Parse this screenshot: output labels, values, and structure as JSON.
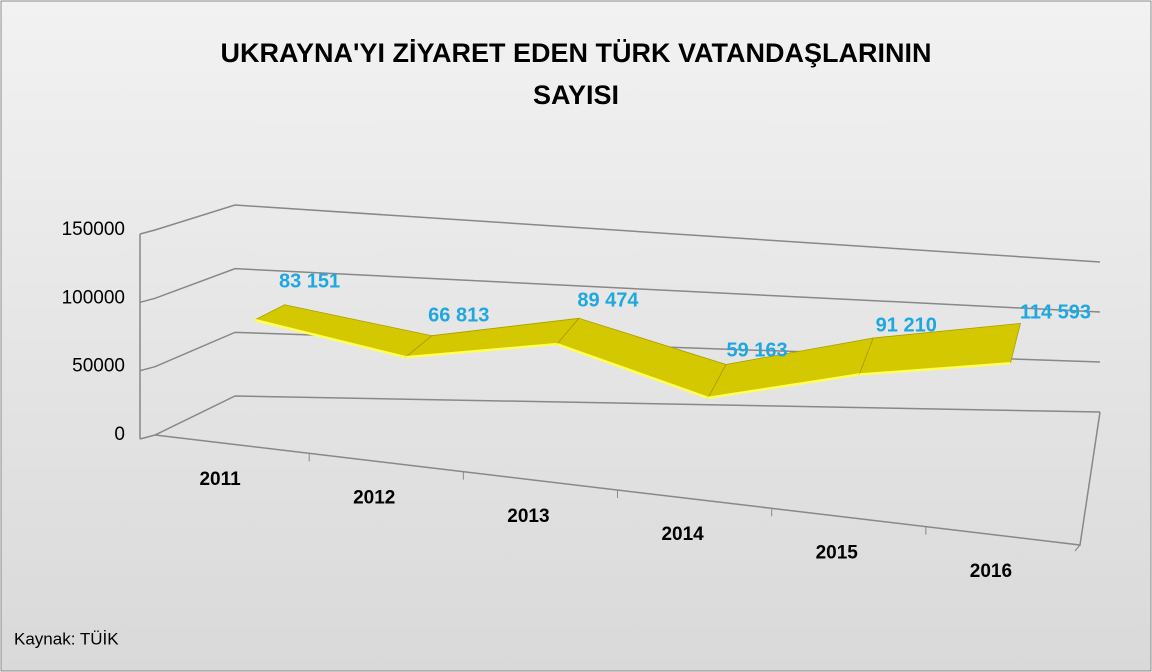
{
  "chart_data": {
    "type": "line3d",
    "title": "UKRAYNA'YI ZİYARET EDEN TÜRK VATANDAŞLARININ SAYISI",
    "categories": [
      "2011",
      "2012",
      "2013",
      "2014",
      "2015",
      "2016"
    ],
    "values": [
      83151,
      66813,
      89474,
      59163,
      91210,
      114593
    ],
    "value_labels": [
      "83 151",
      "66 813",
      "89 474",
      "59 163",
      "91 210",
      "114 593"
    ],
    "color": "#d4c800",
    "ylim": [
      0,
      150000
    ],
    "yticks": [
      0,
      50000,
      100000,
      150000
    ],
    "grid": true,
    "source": "Kaynak: TÜİK"
  }
}
